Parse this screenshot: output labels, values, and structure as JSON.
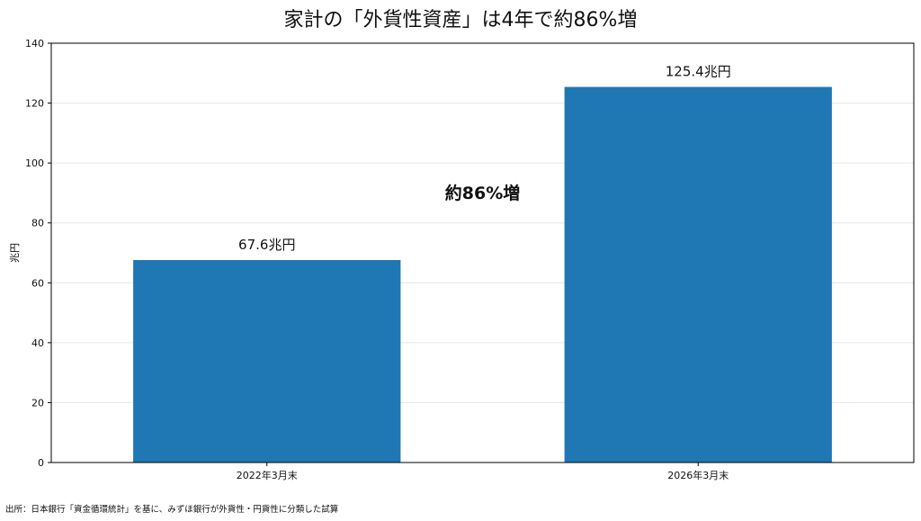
{
  "chart_data": {
    "type": "bar",
    "title": "家計の「外貨性資産」は4年で約86%増",
    "xlabel": "",
    "ylabel": "兆円",
    "categories": [
      "2022年3月末",
      "2026年3月末"
    ],
    "values": [
      67.6,
      125.4
    ],
    "data_labels": [
      "67.6兆円",
      "125.4兆円"
    ],
    "ylim": [
      0,
      140
    ],
    "yticks": [
      0,
      20,
      40,
      60,
      80,
      100,
      120,
      140
    ],
    "grid": true,
    "annotation": "約86%増",
    "bar_color": "#1f77b4"
  },
  "source_note": "出所：日本銀行「資金循環統計」を基に、みずほ銀行が外貨性・円貨性に分類した試算"
}
